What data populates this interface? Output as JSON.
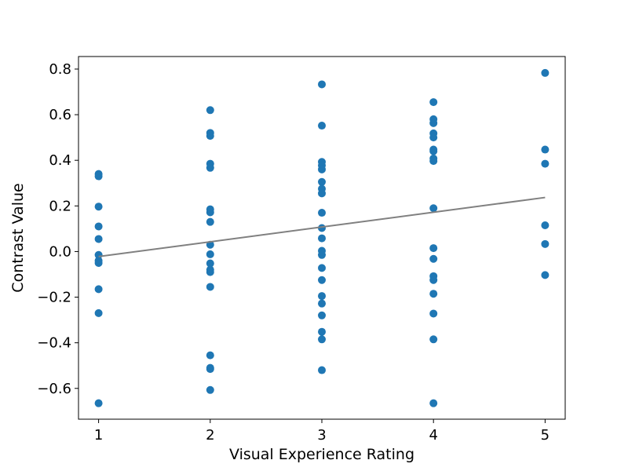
{
  "chart_data": {
    "type": "scatter",
    "title": "",
    "xlabel": "Visual Experience Rating",
    "ylabel": "Contrast Value",
    "xlim": [
      0.82,
      5.18
    ],
    "ylim": [
      -0.735,
      0.855
    ],
    "xticks": [
      1,
      2,
      3,
      4,
      5
    ],
    "xtick_labels": [
      "1",
      "2",
      "3",
      "4",
      "5"
    ],
    "yticks": [
      -0.6,
      -0.4,
      -0.2,
      0.0,
      0.2,
      0.4,
      0.6,
      0.8
    ],
    "ytick_labels": [
      "−0.6",
      "−0.4",
      "−0.2",
      "0.0",
      "0.2",
      "0.4",
      "0.6",
      "0.8"
    ],
    "grid": false,
    "legend": "none",
    "point_color": "#1f77b4",
    "trend_color": "#808080",
    "points": [
      {
        "x": 1,
        "y": 0.34
      },
      {
        "x": 1,
        "y": 0.33
      },
      {
        "x": 1,
        "y": 0.197
      },
      {
        "x": 1,
        "y": 0.11
      },
      {
        "x": 1,
        "y": 0.055
      },
      {
        "x": 1,
        "y": -0.015
      },
      {
        "x": 1,
        "y": -0.04
      },
      {
        "x": 1,
        "y": -0.05
      },
      {
        "x": 1,
        "y": -0.165
      },
      {
        "x": 1,
        "y": -0.27
      },
      {
        "x": 1,
        "y": -0.665
      },
      {
        "x": 2,
        "y": 0.62
      },
      {
        "x": 2,
        "y": 0.52
      },
      {
        "x": 2,
        "y": 0.507
      },
      {
        "x": 2,
        "y": 0.385
      },
      {
        "x": 2,
        "y": 0.367
      },
      {
        "x": 2,
        "y": 0.185
      },
      {
        "x": 2,
        "y": 0.172
      },
      {
        "x": 2,
        "y": 0.13
      },
      {
        "x": 2,
        "y": 0.03
      },
      {
        "x": 2,
        "y": -0.012
      },
      {
        "x": 2,
        "y": -0.052
      },
      {
        "x": 2,
        "y": -0.08
      },
      {
        "x": 2,
        "y": -0.09
      },
      {
        "x": 2,
        "y": -0.155
      },
      {
        "x": 2,
        "y": -0.455
      },
      {
        "x": 2,
        "y": -0.51
      },
      {
        "x": 2,
        "y": -0.515
      },
      {
        "x": 2,
        "y": -0.607
      },
      {
        "x": 3,
        "y": 0.733
      },
      {
        "x": 3,
        "y": 0.552
      },
      {
        "x": 3,
        "y": 0.393
      },
      {
        "x": 3,
        "y": 0.378
      },
      {
        "x": 3,
        "y": 0.36
      },
      {
        "x": 3,
        "y": 0.305
      },
      {
        "x": 3,
        "y": 0.275
      },
      {
        "x": 3,
        "y": 0.255
      },
      {
        "x": 3,
        "y": 0.17
      },
      {
        "x": 3,
        "y": 0.103
      },
      {
        "x": 3,
        "y": 0.058
      },
      {
        "x": 3,
        "y": 0.003
      },
      {
        "x": 3,
        "y": -0.015
      },
      {
        "x": 3,
        "y": -0.072
      },
      {
        "x": 3,
        "y": -0.125
      },
      {
        "x": 3,
        "y": -0.195
      },
      {
        "x": 3,
        "y": -0.228
      },
      {
        "x": 3,
        "y": -0.28
      },
      {
        "x": 3,
        "y": -0.352
      },
      {
        "x": 3,
        "y": -0.385
      },
      {
        "x": 3,
        "y": -0.52
      },
      {
        "x": 4,
        "y": 0.655
      },
      {
        "x": 4,
        "y": 0.58
      },
      {
        "x": 4,
        "y": 0.563
      },
      {
        "x": 4,
        "y": 0.518
      },
      {
        "x": 4,
        "y": 0.5
      },
      {
        "x": 4,
        "y": 0.447
      },
      {
        "x": 4,
        "y": 0.44
      },
      {
        "x": 4,
        "y": 0.408
      },
      {
        "x": 4,
        "y": 0.397
      },
      {
        "x": 4,
        "y": 0.19
      },
      {
        "x": 4,
        "y": 0.015
      },
      {
        "x": 4,
        "y": -0.032
      },
      {
        "x": 4,
        "y": -0.108
      },
      {
        "x": 4,
        "y": -0.125
      },
      {
        "x": 4,
        "y": -0.185
      },
      {
        "x": 4,
        "y": -0.272
      },
      {
        "x": 4,
        "y": -0.385
      },
      {
        "x": 4,
        "y": -0.665
      },
      {
        "x": 5,
        "y": 0.783
      },
      {
        "x": 5,
        "y": 0.447
      },
      {
        "x": 5,
        "y": 0.385
      },
      {
        "x": 5,
        "y": 0.115
      },
      {
        "x": 5,
        "y": 0.033
      },
      {
        "x": 5,
        "y": -0.103
      }
    ],
    "trend_line": {
      "x": [
        1,
        5
      ],
      "y": [
        -0.022,
        0.237
      ]
    }
  }
}
